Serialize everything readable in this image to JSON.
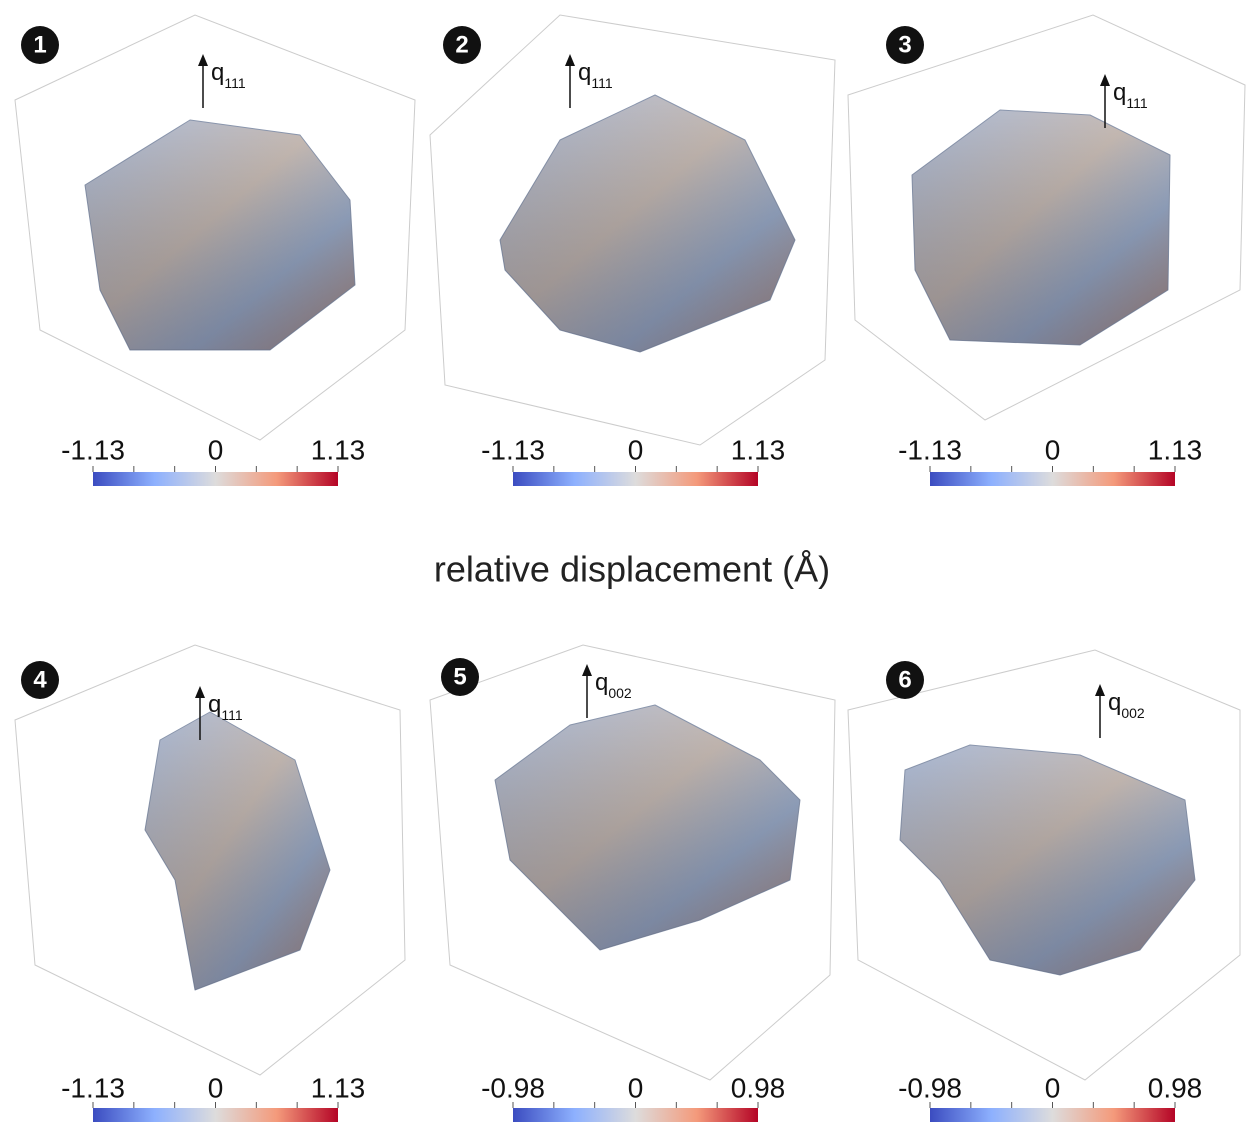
{
  "caption": "relative displacement (Å)",
  "panels": [
    {
      "number": "1",
      "q_label": {
        "main": "q",
        "sub": "111"
      },
      "colorbar": {
        "min": -1.13,
        "mid": 0,
        "max": 1.13
      }
    },
    {
      "number": "2",
      "q_label": {
        "main": "q",
        "sub": "111"
      },
      "colorbar": {
        "min": -1.13,
        "mid": 0,
        "max": 1.13
      }
    },
    {
      "number": "3",
      "q_label": {
        "main": "q",
        "sub": "111"
      },
      "colorbar": {
        "min": -1.13,
        "mid": 0,
        "max": 1.13
      }
    },
    {
      "number": "4",
      "q_label": {
        "main": "q",
        "sub": "111"
      },
      "colorbar": {
        "min": -1.13,
        "mid": 0,
        "max": 1.13
      }
    },
    {
      "number": "5",
      "q_label": {
        "main": "q",
        "sub": "002"
      },
      "colorbar": {
        "min": -0.98,
        "mid": 0,
        "max": 0.98
      }
    },
    {
      "number": "6",
      "q_label": {
        "main": "q",
        "sub": "002"
      },
      "colorbar": {
        "min": -0.98,
        "mid": 0,
        "max": 0.98
      }
    }
  ]
}
